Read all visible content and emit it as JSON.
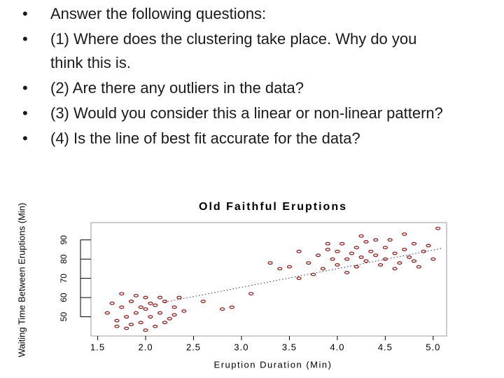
{
  "bullets": [
    "Answer the following questions:",
    "(1) Where does the clustering take place. Why do you think this is.",
    "(2) Are there any outliers in the data?",
    "(3) Would you consider this a linear or non-linear pattern?",
    "(4) Is the line of best fit accurate for the data?"
  ],
  "chart_data": {
    "type": "scatter",
    "title": "Old Faithful Eruptions",
    "xlabel": "Eruption Duration (Min)",
    "ylabel": "Waiting Time Between Eruptions (Min)",
    "x": [
      1.6,
      1.7,
      1.75,
      1.8,
      1.8,
      1.85,
      1.9,
      1.95,
      2.0,
      2.0,
      2.05,
      2.1,
      2.1,
      2.15,
      2.2,
      2.25,
      2.3,
      2.35,
      1.65,
      1.7,
      1.9,
      2.0,
      2.2,
      2.4,
      1.75,
      1.85,
      2.05,
      2.3,
      1.95,
      2.15,
      2.6,
      2.8,
      2.9,
      3.3,
      3.4,
      3.5,
      3.1,
      3.6,
      3.7,
      3.8,
      3.85,
      3.9,
      3.95,
      4.0,
      4.0,
      4.05,
      4.1,
      4.15,
      4.2,
      4.2,
      4.25,
      4.3,
      4.3,
      4.35,
      4.4,
      4.45,
      4.5,
      4.5,
      4.55,
      4.6,
      4.65,
      4.7,
      4.75,
      4.8,
      4.85,
      4.9,
      5.0,
      5.05,
      3.75,
      4.1,
      4.4,
      4.6,
      4.8,
      3.9,
      4.25,
      4.95,
      3.6,
      4.7
    ],
    "y": [
      52,
      48,
      55,
      50,
      44,
      58,
      52,
      47,
      54,
      60,
      50,
      56,
      45,
      52,
      58,
      49,
      55,
      60,
      57,
      45,
      61,
      43,
      47,
      53,
      62,
      46,
      57,
      51,
      55,
      60,
      58,
      54,
      55,
      78,
      75,
      76,
      62,
      70,
      78,
      82,
      75,
      85,
      80,
      77,
      84,
      88,
      80,
      83,
      76,
      86,
      81,
      79,
      89,
      84,
      82,
      77,
      86,
      80,
      90,
      83,
      78,
      85,
      81,
      88,
      76,
      84,
      80,
      96,
      72,
      73,
      90,
      75,
      79,
      88,
      92,
      87,
      84,
      93
    ],
    "xlim": [
      1.43,
      5.14
    ],
    "ylim": [
      40,
      99
    ],
    "xticks": [
      1.5,
      {
        "value": 2,
        "label": "2.0"
      },
      2.5,
      {
        "value": 3,
        "label": "3.0"
      },
      3.5,
      {
        "value": 4,
        "label": "4.0"
      },
      4.5,
      {
        "value": 5,
        "label": "5.0"
      }
    ],
    "yticks": [
      50,
      60,
      70,
      80,
      90
    ],
    "color": "#8b1a1a",
    "fit_line": {
      "x": [
        2.2,
        5.1
      ],
      "y": [
        57.6,
        85.7
      ]
    }
  }
}
